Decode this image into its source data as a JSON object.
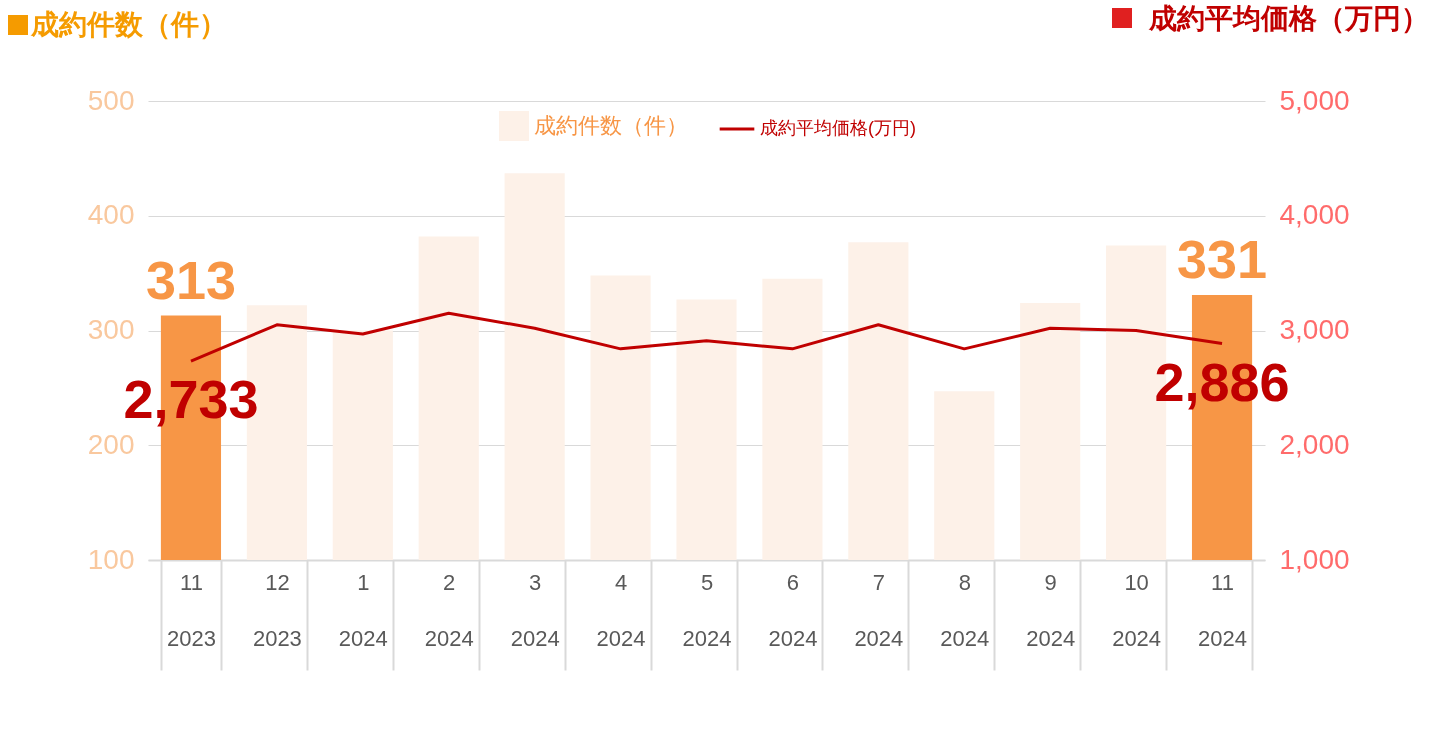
{
  "chart_data": {
    "type": "bar",
    "ylabel": "成約件数（件）",
    "y2label": "成約平均価格（万円）",
    "categories": [
      "11\n2023",
      "12\n2023",
      "1\n2024",
      "2\n2024",
      "3\n2024",
      "4\n2024",
      "5\n2024",
      "6\n2024",
      "7\n2024",
      "8\n2024",
      "9\n2024",
      "10\n2024",
      "11\n2024"
    ],
    "series": [
      {
        "name": "成約件数（件）",
        "color": "#fdf1e8",
        "colors": [
          "#f79646",
          "#fdf1e8",
          "#fdf1e8",
          "#fdf1e8",
          "#fdf1e8",
          "#fdf1e8",
          "#fdf1e8",
          "#fdf1e8",
          "#fdf1e8",
          "#fdf1e8",
          "#fdf1e8",
          "#fdf1e8",
          "#f79646"
        ],
        "values": [
          313,
          322,
          300,
          382,
          437,
          348,
          327,
          345,
          377,
          247,
          324,
          374,
          331
        ],
        "value_labels": [
          "313",
          null,
          null,
          null,
          null,
          null,
          null,
          null,
          null,
          null,
          null,
          null,
          "331"
        ]
      },
      {
        "name": "成約平均価格(万円)",
        "type": "line",
        "axis": "y2",
        "color": "#c00000",
        "values": [
          2733,
          3050,
          2970,
          3150,
          3020,
          2840,
          2910,
          2840,
          3050,
          2840,
          3020,
          3000,
          2886
        ],
        "value_labels": [
          "2,733",
          null,
          null,
          null,
          null,
          null,
          null,
          null,
          null,
          null,
          null,
          null,
          "2,886"
        ]
      }
    ],
    "ylim": [
      100,
      500
    ],
    "yticks": [
      100,
      200,
      300,
      400,
      500
    ],
    "y2lim": [
      1000,
      5000
    ],
    "y2ticks": [
      {
        "value": 1000,
        "label": "1,000"
      },
      {
        "value": 2000,
        "label": "2,000"
      },
      {
        "value": 3000,
        "label": "3,000"
      },
      {
        "value": 4000,
        "label": "4,000"
      },
      {
        "value": 5000,
        "label": "5,000"
      }
    ],
    "grid": "y",
    "legend": "top",
    "line_style": "solid",
    "marker": "none"
  }
}
